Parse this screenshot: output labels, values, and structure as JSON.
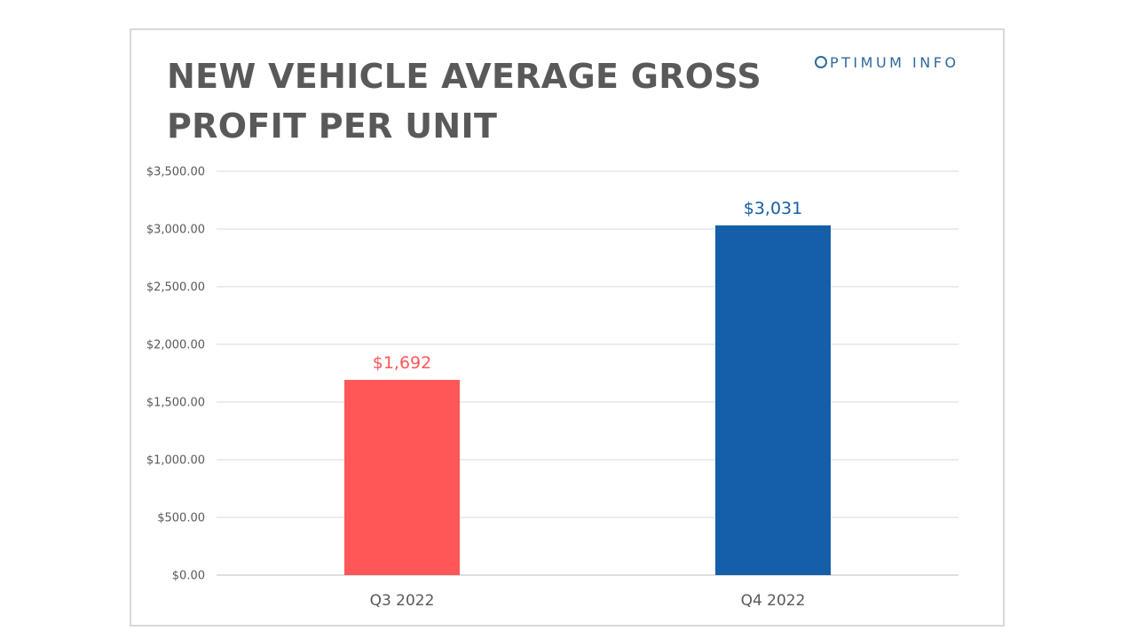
{
  "title_lines": [
    "NEW VEHICLE AVERAGE GROSS",
    "PROFIT PER UNIT"
  ],
  "brand": {
    "first_letter_icon": "o-ring-icon",
    "rest": "PTIMUM INFO"
  },
  "chart_data": {
    "type": "bar",
    "title": "NEW VEHICLE AVERAGE GROSS PROFIT PER UNIT",
    "categories": [
      "Q3 2022",
      "Q4 2022"
    ],
    "values": [
      1692,
      3031
    ],
    "data_labels": [
      "$1,692",
      "$3,031"
    ],
    "bar_colors": [
      "#ff5757",
      "#145fa8"
    ],
    "ylim": [
      0,
      3500
    ],
    "yticks": [
      0,
      500,
      1000,
      1500,
      2000,
      2500,
      3000,
      3500
    ],
    "ytick_labels": [
      "$0.00",
      "$500.00",
      "$1,000.00",
      "$1,500.00",
      "$2,000.00",
      "$2,500.00",
      "$3,000.00",
      "$3,500.00"
    ],
    "xlabel": "",
    "ylabel": "",
    "grid": true,
    "legend": "none"
  }
}
